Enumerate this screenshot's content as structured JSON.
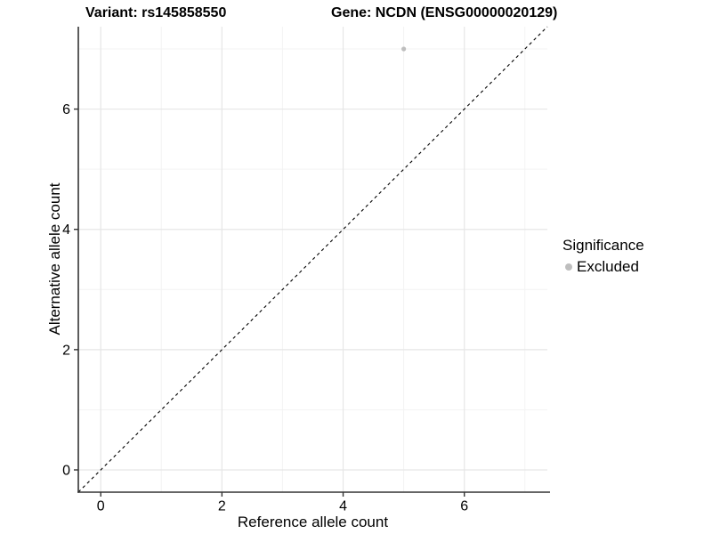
{
  "header": {
    "variant_title": "Variant: rs145858550",
    "gene_title": "Gene: NCDN (ENSG00000020129)"
  },
  "chart_data": {
    "type": "scatter",
    "title_left": "Variant: rs145858550",
    "title_right": "Gene: NCDN (ENSG00000020129)",
    "xlabel": "Reference allele count",
    "ylabel": "Alternative allele count",
    "xlim": [
      -0.37,
      7.37
    ],
    "ylim": [
      -0.37,
      7.37
    ],
    "x_ticks": [
      0,
      2,
      4,
      6
    ],
    "y_ticks": [
      0,
      2,
      4,
      6
    ],
    "x_minor_gridlines": [
      1,
      3,
      5,
      7
    ],
    "y_minor_gridlines": [
      1,
      3,
      5,
      7
    ],
    "grid": true,
    "identity_line": {
      "style": "dashed",
      "from": [
        -0.37,
        -0.37
      ],
      "to": [
        7.37,
        7.37
      ],
      "color": "#000000"
    },
    "series": [
      {
        "name": "Excluded",
        "color": "#bebebe",
        "points": [
          [
            5,
            7
          ]
        ]
      }
    ],
    "legend": {
      "title": "Significance",
      "position": "right",
      "items": [
        {
          "label": "Excluded",
          "color": "#bebebe"
        }
      ]
    },
    "colors": {
      "grid_major": "#e6e6e6",
      "grid_minor": "#f3f3f3",
      "axis_line": "#333333",
      "tick_text": "#000000"
    }
  }
}
